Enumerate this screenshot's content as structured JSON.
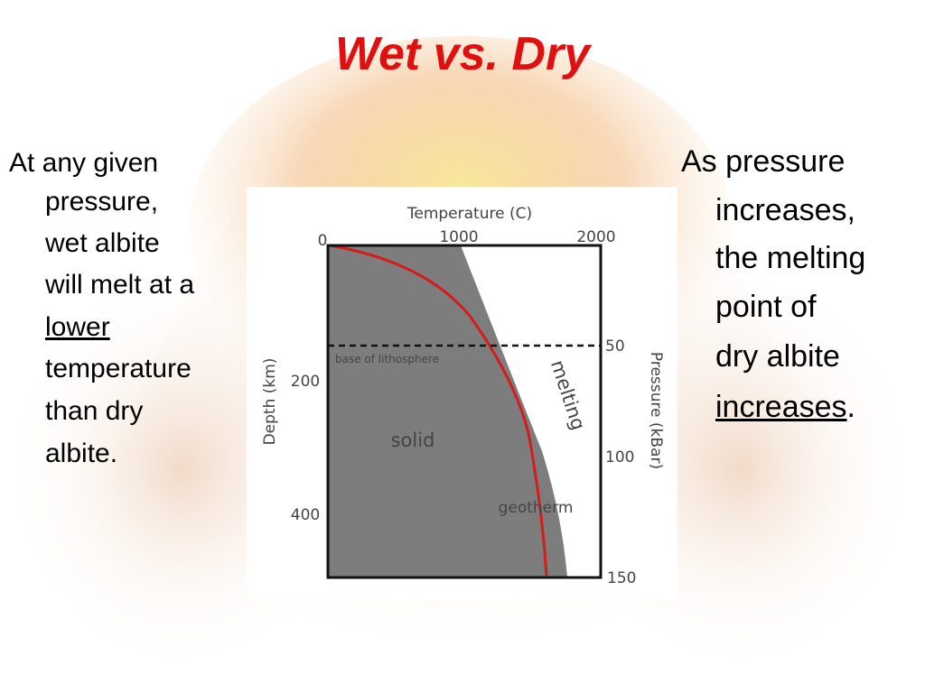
{
  "title": "Wet vs. Dry",
  "left_text": [
    "At any given",
    "pressure,",
    "wet albite",
    "will melt at a",
    "lower",
    "temperature",
    "than dry",
    "albite."
  ],
  "right_text": [
    "As pressure",
    "increases,",
    "the melting",
    "point of",
    "dry albite",
    [
      "increases",
      "."
    ]
  ],
  "figure": {
    "x_axis_label": "Temperature (C)",
    "x_ticks": [
      "0",
      "1000",
      "2000"
    ],
    "y_axis_label": "Depth (km)",
    "y_ticks": [
      "200",
      "400"
    ],
    "y2_axis_label": "Pressure (kBar)",
    "y2_ticks": [
      "50",
      "100",
      "150"
    ],
    "annotations": {
      "lithosphere": "base of lithosphere",
      "melting": "melting",
      "solid": "solid",
      "geotherm": "geotherm"
    }
  }
}
